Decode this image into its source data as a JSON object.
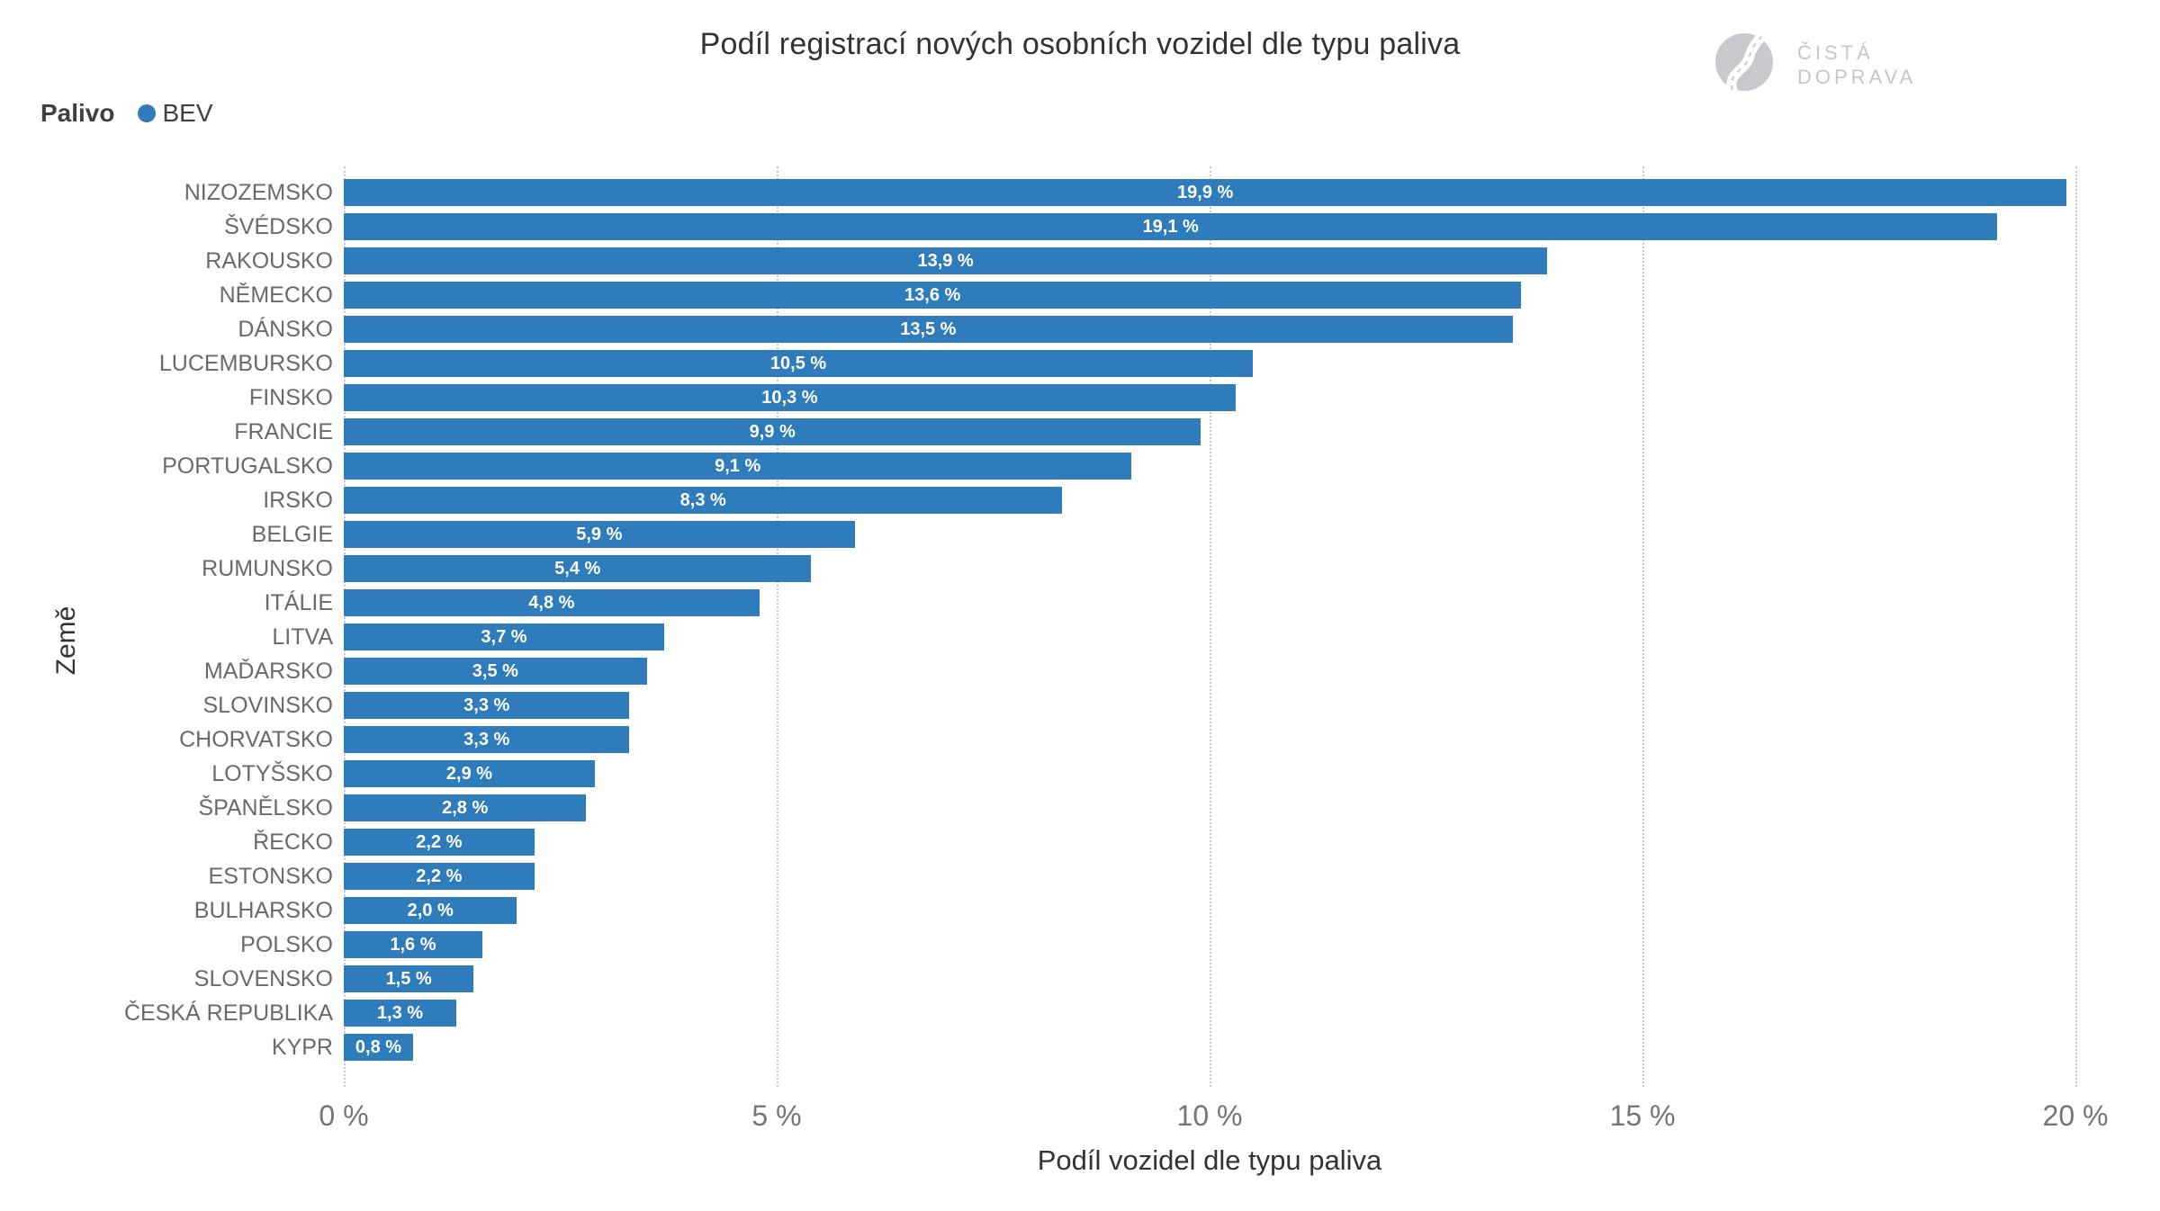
{
  "title": "Podíl registrací nových osobních vozidel dle typu paliva",
  "logo": {
    "line1": "ČISTÁ",
    "line2": "DOPRAVA"
  },
  "legend": {
    "label": "Palivo",
    "items": [
      {
        "name": "BEV",
        "color": "#2e7cbc"
      }
    ]
  },
  "chart_data": {
    "type": "bar",
    "orientation": "horizontal",
    "title": "Podíl registrací nových osobních vozidel dle typu paliva",
    "xlabel": "Podíl vozidel dle typu paliva",
    "ylabel": "Země",
    "xlim": [
      0,
      20
    ],
    "grid": "vertical-dotted",
    "legend_position": "top-left",
    "bar_color": "#2e7cbc",
    "value_label_color": "#ffffff",
    "categories": [
      "NIZOZEMSKO",
      "ŠVÉDSKO",
      "RAKOUSKO",
      "NĚMECKO",
      "DÁNSKO",
      "LUCEMBURSKO",
      "FINSKO",
      "FRANCIE",
      "PORTUGALSKO",
      "IRSKO",
      "BELGIE",
      "RUMUNSKO",
      "ITÁLIE",
      "LITVA",
      "MAĎARSKO",
      "SLOVINSKO",
      "CHORVATSKO",
      "LOTYŠSKO",
      "ŠPANĚLSKO",
      "ŘECKO",
      "ESTONSKO",
      "BULHARSKO",
      "POLSKO",
      "SLOVENSKO",
      "ČESKÁ REPUBLIKA",
      "KYPR"
    ],
    "values": [
      19.9,
      19.1,
      13.9,
      13.6,
      13.5,
      10.5,
      10.3,
      9.9,
      9.1,
      8.3,
      5.9,
      5.4,
      4.8,
      3.7,
      3.5,
      3.3,
      3.3,
      2.9,
      2.8,
      2.2,
      2.2,
      2.0,
      1.6,
      1.5,
      1.3,
      0.8
    ],
    "value_labels": [
      "19,9 %",
      "19,1 %",
      "13,9 %",
      "13,6 %",
      "13,5 %",
      "10,5 %",
      "10,3 %",
      "9,9 %",
      "9,1 %",
      "8,3 %",
      "5,9 %",
      "5,4 %",
      "4,8 %",
      "3,7 %",
      "3,5 %",
      "3,3 %",
      "3,3 %",
      "2,9 %",
      "2,8 %",
      "2,2 %",
      "2,2 %",
      "2,0 %",
      "1,6 %",
      "1,5 %",
      "1,3 %",
      "0,8 %"
    ],
    "xticks": [
      {
        "value": 0,
        "label": "0 %"
      },
      {
        "value": 5,
        "label": "5 %"
      },
      {
        "value": 10,
        "label": "10 %"
      },
      {
        "value": 15,
        "label": "15 %"
      },
      {
        "value": 20,
        "label": "20 %"
      }
    ]
  }
}
